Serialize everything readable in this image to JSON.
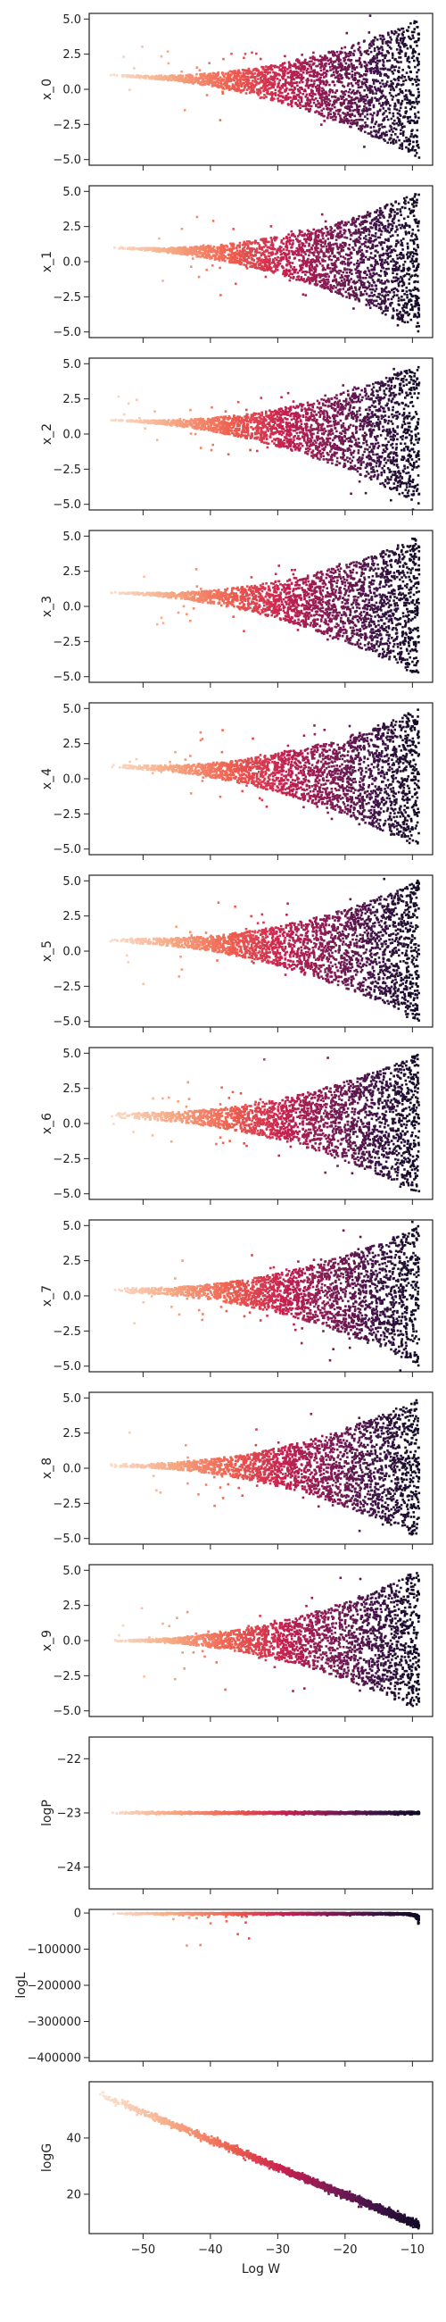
{
  "chart_data": {
    "type": "scatter",
    "xlabel": "Log W",
    "xlim": [
      -58,
      -7
    ],
    "x_ticks": [
      -50,
      -40,
      -30,
      -20,
      -10
    ],
    "x_tick_labels": [
      "−50",
      "−40",
      "−30",
      "−20",
      "−10"
    ],
    "colormap": [
      "#fbe6d6",
      "#f6a883",
      "#ee5f4f",
      "#c8214f",
      "#7f1b54",
      "#3f1347",
      "#100a24"
    ],
    "panels": [
      {
        "ylabel": "x_0",
        "ylim": [
          -5.4,
          5.4
        ],
        "yticks": [
          -5.0,
          -2.5,
          0.0,
          2.5,
          5.0
        ],
        "ytick_labels": [
          "−5.0",
          "−2.5",
          "0.0",
          "2.5",
          "5.0"
        ],
        "center": 1.0,
        "start_x": -55,
        "band_start": 0.05,
        "band_end": 5.0
      },
      {
        "ylabel": "x_1",
        "ylim": [
          -5.4,
          5.4
        ],
        "yticks": [
          -5.0,
          -2.5,
          0.0,
          2.5,
          5.0
        ],
        "ytick_labels": [
          "−5.0",
          "−2.5",
          "0.0",
          "2.5",
          "5.0"
        ],
        "center": 1.0,
        "start_x": -55,
        "band_start": 0.05,
        "band_end": 5.0
      },
      {
        "ylabel": "x_2",
        "ylim": [
          -5.4,
          5.4
        ],
        "yticks": [
          -5.0,
          -2.5,
          0.0,
          2.5,
          5.0
        ],
        "ytick_labels": [
          "−5.0",
          "−2.5",
          "0.0",
          "2.5",
          "5.0"
        ],
        "center": 1.0,
        "start_x": -55,
        "band_start": 0.05,
        "band_end": 5.0
      },
      {
        "ylabel": "x_3",
        "ylim": [
          -5.4,
          5.4
        ],
        "yticks": [
          -5.0,
          -2.5,
          0.0,
          2.5,
          5.0
        ],
        "ytick_labels": [
          "−5.0",
          "−2.5",
          "0.0",
          "2.5",
          "5.0"
        ],
        "center": 1.0,
        "start_x": -55,
        "band_start": 0.05,
        "band_end": 5.0
      },
      {
        "ylabel": "x_4",
        "ylim": [
          -5.4,
          5.4
        ],
        "yticks": [
          -5.0,
          -2.5,
          0.0,
          2.5,
          5.0
        ],
        "ytick_labels": [
          "−5.0",
          "−2.5",
          "0.0",
          "2.5",
          "5.0"
        ],
        "center": 0.9,
        "start_x": -55,
        "band_start": 0.1,
        "band_end": 5.0
      },
      {
        "ylabel": "x_5",
        "ylim": [
          -5.4,
          5.4
        ],
        "yticks": [
          -5.0,
          -2.5,
          0.0,
          2.5,
          5.0
        ],
        "ytick_labels": [
          "−5.0",
          "−2.5",
          "0.0",
          "2.5",
          "5.0"
        ],
        "center": 0.8,
        "start_x": -55,
        "band_start": 0.15,
        "band_end": 5.0
      },
      {
        "ylabel": "x_6",
        "ylim": [
          -5.4,
          5.4
        ],
        "yticks": [
          -5.0,
          -2.5,
          0.0,
          2.5,
          5.0
        ],
        "ytick_labels": [
          "−5.0",
          "−2.5",
          "0.0",
          "2.5",
          "5.0"
        ],
        "center": 0.6,
        "start_x": -55,
        "band_start": 0.2,
        "band_end": 5.0
      },
      {
        "ylabel": "x_7",
        "ylim": [
          -5.4,
          5.4
        ],
        "yticks": [
          -5.0,
          -2.5,
          0.0,
          2.5,
          5.0
        ],
        "ytick_labels": [
          "−5.0",
          "−2.5",
          "0.0",
          "2.5",
          "5.0"
        ],
        "center": 0.4,
        "start_x": -55,
        "band_start": 0.15,
        "band_end": 5.0
      },
      {
        "ylabel": "x_8",
        "ylim": [
          -5.4,
          5.4
        ],
        "yticks": [
          -5.0,
          -2.5,
          0.0,
          2.5,
          5.0
        ],
        "ytick_labels": [
          "−5.0",
          "−2.5",
          "0.0",
          "2.5",
          "5.0"
        ],
        "center": 0.2,
        "start_x": -55,
        "band_start": 0.1,
        "band_end": 5.0
      },
      {
        "ylabel": "x_9",
        "ylim": [
          -5.4,
          5.4
        ],
        "yticks": [
          -5.0,
          -2.5,
          0.0,
          2.5,
          5.0
        ],
        "ytick_labels": [
          "−5.0",
          "−2.5",
          "0.0",
          "2.5",
          "5.0"
        ],
        "center": 0.0,
        "start_x": -55,
        "band_start": 0.05,
        "band_end": 5.0
      },
      {
        "ylabel": "logP",
        "ylim": [
          -24.4,
          -21.6
        ],
        "yticks": [
          -24,
          -23,
          -22
        ],
        "ytick_labels": [
          "−24",
          "−23",
          "−22"
        ],
        "constant": -23.0,
        "start_x": -55
      },
      {
        "ylabel": "logL",
        "ylim": [
          -410000,
          10000
        ],
        "yticks": [
          -400000,
          -300000,
          -200000,
          -100000,
          0
        ],
        "ytick_labels": [
          "−400000",
          "−300000",
          "−200000",
          "−100000",
          "0"
        ],
        "curve": "likelihood",
        "start_x": -55
      },
      {
        "ylabel": "logG",
        "ylim": [
          6,
          60
        ],
        "yticks": [
          20,
          40
        ],
        "ytick_labels": [
          "20",
          "40"
        ],
        "line_start": [
          -57,
          56
        ],
        "line_end": [
          -9,
          9
        ]
      }
    ]
  }
}
